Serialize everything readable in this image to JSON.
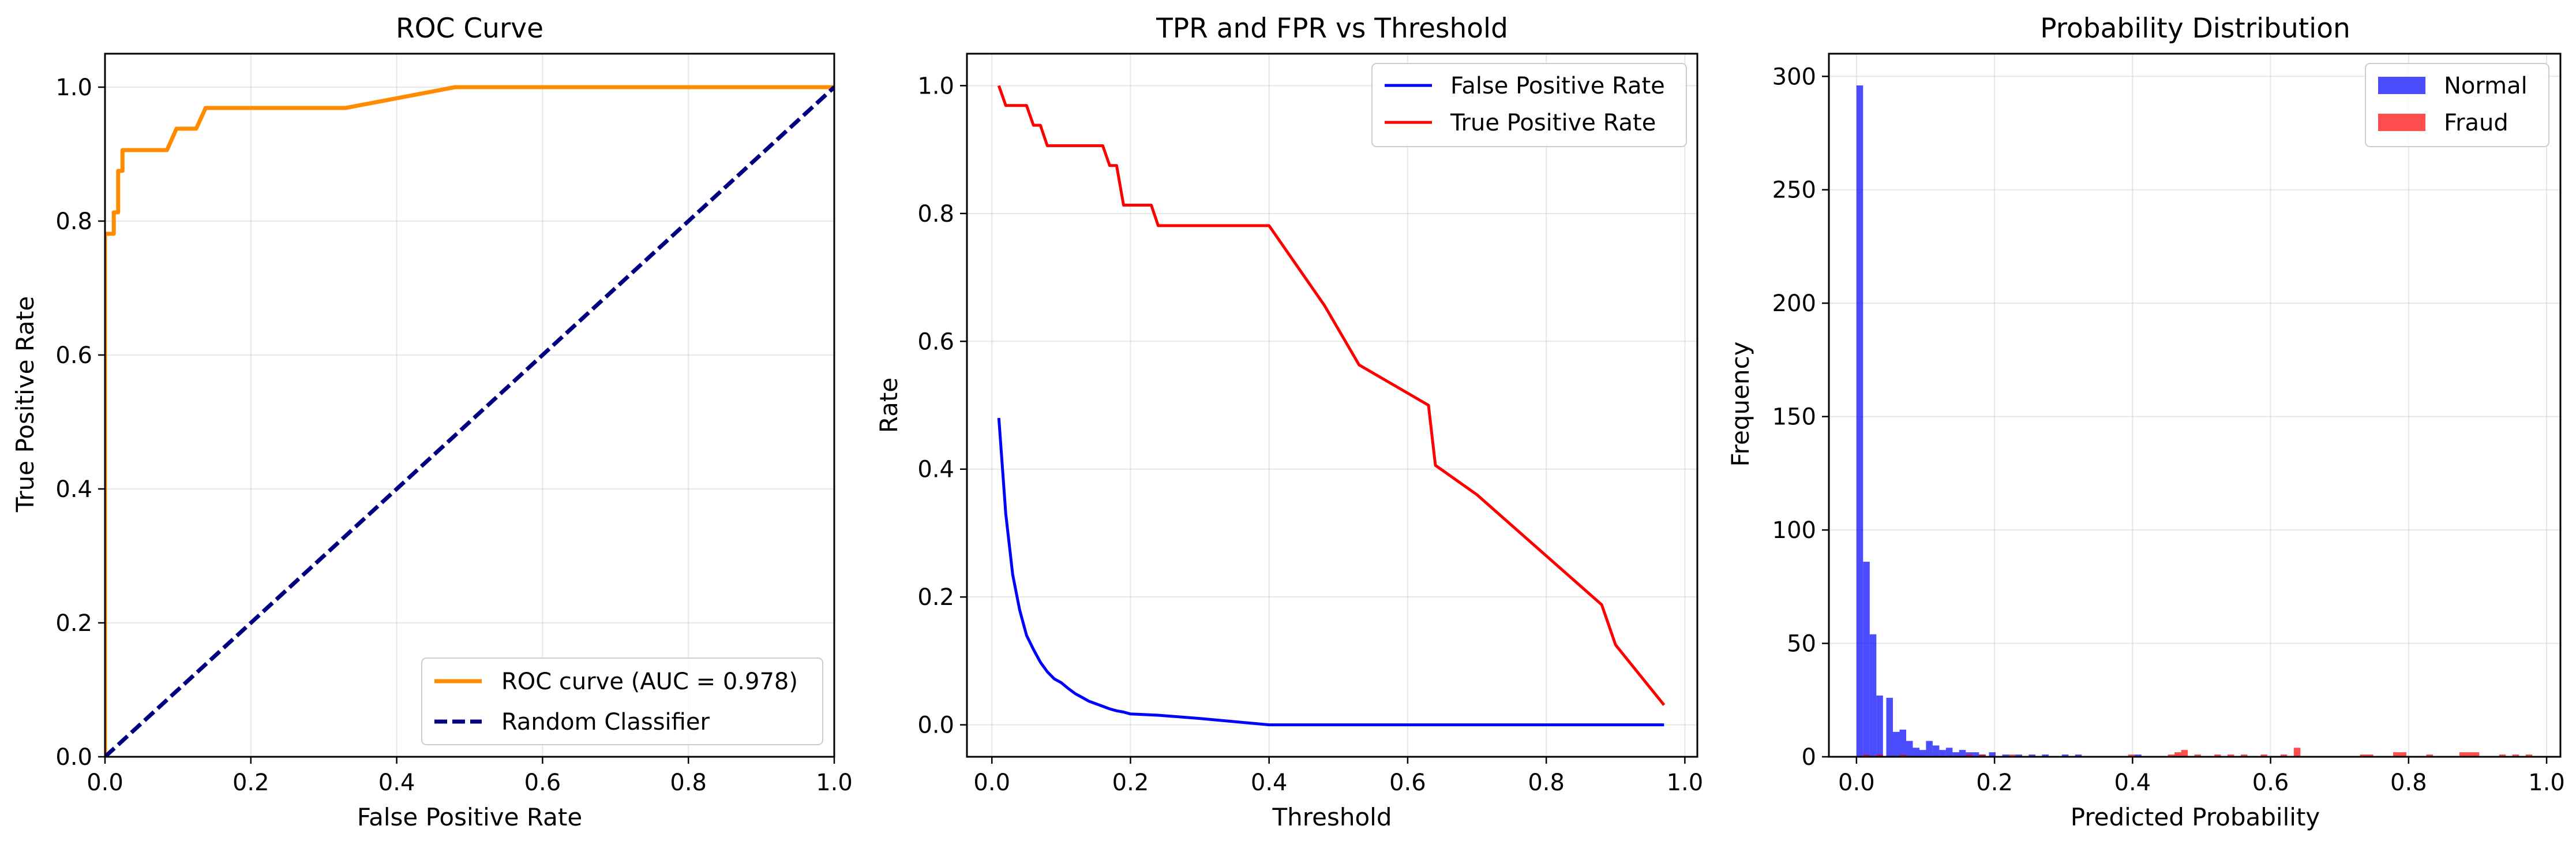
{
  "figure": {
    "background": "#ffffff"
  },
  "chart_data": [
    {
      "id": "roc",
      "type": "line",
      "title": "ROC Curve",
      "xlabel": "False Positive Rate",
      "ylabel": "True Positive Rate",
      "xlim": [
        0,
        1
      ],
      "ylim": [
        0,
        1.05
      ],
      "xticks": [
        0,
        0.2,
        0.4,
        0.6,
        0.8,
        1.0
      ],
      "xtick_labels": [
        "0.0",
        "0.2",
        "0.4",
        "0.6",
        "0.8",
        "1.0"
      ],
      "yticks": [
        0,
        0.2,
        0.4,
        0.6,
        0.8,
        1.0
      ],
      "ytick_labels": [
        "0.0",
        "0.2",
        "0.4",
        "0.6",
        "0.8",
        "1.0"
      ],
      "grid": true,
      "legend": "lower-right",
      "series": [
        {
          "name": "ROC curve (AUC = 0.978)",
          "color": "#ff8c00",
          "dash": "solid",
          "x": [
            0,
            0,
            0.003,
            0.003,
            0.012,
            0.012,
            0.018,
            0.018,
            0.024,
            0.024,
            0.03,
            0.03,
            0.085,
            0.098,
            0.108,
            0.125,
            0.138,
            0.14,
            0.32,
            0.33,
            0.48,
            1.0
          ],
          "y": [
            0,
            0.781,
            0.781,
            0.781,
            0.781,
            0.813,
            0.813,
            0.875,
            0.875,
            0.906,
            0.906,
            0.906,
            0.906,
            0.938,
            0.938,
            0.938,
            0.969,
            0.969,
            0.969,
            0.969,
            1.0,
            1.0
          ]
        },
        {
          "name": "Random Classifier",
          "color": "#000080",
          "dash": "dashed",
          "x": [
            0,
            1
          ],
          "y": [
            0,
            1
          ]
        }
      ]
    },
    {
      "id": "thresh",
      "type": "line",
      "title": "TPR and FPR vs Threshold",
      "xlabel": "Threshold",
      "ylabel": "Rate",
      "xlim": [
        -0.036,
        1.018
      ],
      "ylim": [
        -0.05,
        1.05
      ],
      "xticks": [
        0,
        0.2,
        0.4,
        0.6,
        0.8,
        1.0
      ],
      "xtick_labels": [
        "0.0",
        "0.2",
        "0.4",
        "0.6",
        "0.8",
        "1.0"
      ],
      "yticks": [
        0,
        0.2,
        0.4,
        0.6,
        0.8,
        1.0
      ],
      "ytick_labels": [
        "0.0",
        "0.2",
        "0.4",
        "0.6",
        "0.8",
        "1.0"
      ],
      "grid": true,
      "legend": "top-right",
      "series": [
        {
          "name": "False Positive Rate",
          "color": "#0000ff",
          "dash": "solid",
          "x": [
            0.01,
            0.02,
            0.03,
            0.04,
            0.05,
            0.06,
            0.07,
            0.08,
            0.09,
            0.1,
            0.11,
            0.12,
            0.13,
            0.14,
            0.15,
            0.16,
            0.17,
            0.18,
            0.19,
            0.2,
            0.24,
            0.3,
            0.35,
            0.4,
            0.5,
            0.6,
            0.7,
            0.8,
            0.9,
            0.97
          ],
          "y": [
            0.48,
            0.33,
            0.235,
            0.18,
            0.14,
            0.118,
            0.098,
            0.083,
            0.072,
            0.066,
            0.057,
            0.049,
            0.043,
            0.037,
            0.033,
            0.029,
            0.025,
            0.022,
            0.02,
            0.017,
            0.015,
            0.01,
            0.005,
            0.0,
            0.0,
            0.0,
            0.0,
            0.0,
            0.0,
            0.0
          ]
        },
        {
          "name": "True Positive Rate",
          "color": "#ff0000",
          "dash": "solid",
          "x": [
            0.01,
            0.02,
            0.04,
            0.05,
            0.06,
            0.07,
            0.08,
            0.16,
            0.17,
            0.18,
            0.19,
            0.22,
            0.23,
            0.24,
            0.25,
            0.4,
            0.48,
            0.53,
            0.63,
            0.64,
            0.7,
            0.88,
            0.9,
            0.97
          ],
          "y": [
            1.0,
            0.969,
            0.969,
            0.969,
            0.938,
            0.938,
            0.906,
            0.906,
            0.875,
            0.875,
            0.813,
            0.813,
            0.813,
            0.781,
            0.781,
            0.781,
            0.656,
            0.563,
            0.5,
            0.406,
            0.36,
            0.188,
            0.125,
            0.031
          ]
        }
      ]
    },
    {
      "id": "hist",
      "type": "bar",
      "title": "Probability Distribution",
      "xlabel": "Predicted Probability",
      "ylabel": "Frequency",
      "xlim": [
        -0.04,
        1.02
      ],
      "ylim": [
        0,
        310
      ],
      "xticks": [
        0,
        0.2,
        0.4,
        0.6,
        0.8,
        1.0
      ],
      "xtick_labels": [
        "0.0",
        "0.2",
        "0.4",
        "0.6",
        "0.8",
        "1.0"
      ],
      "yticks": [
        0,
        50,
        100,
        150,
        200,
        250,
        300
      ],
      "ytick_labels": [
        "0",
        "50",
        "100",
        "150",
        "200",
        "250",
        "300"
      ],
      "grid": true,
      "legend": "top-right",
      "bin_width": 0.0096,
      "series": [
        {
          "name": "Normal",
          "color": "#0000ff",
          "opacity": 0.7,
          "bins": [
            [
              0.0,
              296
            ],
            [
              0.0096,
              86
            ],
            [
              0.0192,
              54
            ],
            [
              0.0288,
              27
            ],
            [
              0.0432,
              26
            ],
            [
              0.0528,
              11
            ],
            [
              0.0624,
              12
            ],
            [
              0.072,
              7
            ],
            [
              0.0816,
              4
            ],
            [
              0.0912,
              3
            ],
            [
              0.1008,
              7
            ],
            [
              0.1104,
              5
            ],
            [
              0.12,
              3
            ],
            [
              0.1296,
              4
            ],
            [
              0.1392,
              2
            ],
            [
              0.1488,
              3
            ],
            [
              0.1584,
              2
            ],
            [
              0.168,
              2
            ],
            [
              0.1776,
              1
            ],
            [
              0.192,
              2
            ],
            [
              0.2112,
              1
            ],
            [
              0.2304,
              1
            ],
            [
              0.2496,
              1
            ],
            [
              0.2688,
              1
            ],
            [
              0.2976,
              1
            ],
            [
              0.3168,
              1
            ],
            [
              0.4032,
              1
            ]
          ]
        },
        {
          "name": "Fraud",
          "color": "#ff0000",
          "opacity": 0.7,
          "bins": [
            [
              0.0096,
              1
            ],
            [
              0.0288,
              1
            ],
            [
              0.0624,
              1
            ],
            [
              0.1584,
              1
            ],
            [
              0.1776,
              1
            ],
            [
              0.2208,
              1
            ],
            [
              0.3936,
              1
            ],
            [
              0.4512,
              1
            ],
            [
              0.4608,
              2
            ],
            [
              0.4704,
              3
            ],
            [
              0.4896,
              1
            ],
            [
              0.5184,
              1
            ],
            [
              0.5376,
              1
            ],
            [
              0.5568,
              1
            ],
            [
              0.5856,
              1
            ],
            [
              0.6144,
              1
            ],
            [
              0.6336,
              4
            ],
            [
              0.7296,
              1
            ],
            [
              0.7392,
              1
            ],
            [
              0.7776,
              2
            ],
            [
              0.7872,
              2
            ],
            [
              0.8256,
              1
            ],
            [
              0.8736,
              2
            ],
            [
              0.8832,
              2
            ],
            [
              0.8928,
              2
            ],
            [
              0.9312,
              1
            ],
            [
              0.9504,
              1
            ],
            [
              0.9696,
              1
            ]
          ]
        }
      ]
    }
  ]
}
